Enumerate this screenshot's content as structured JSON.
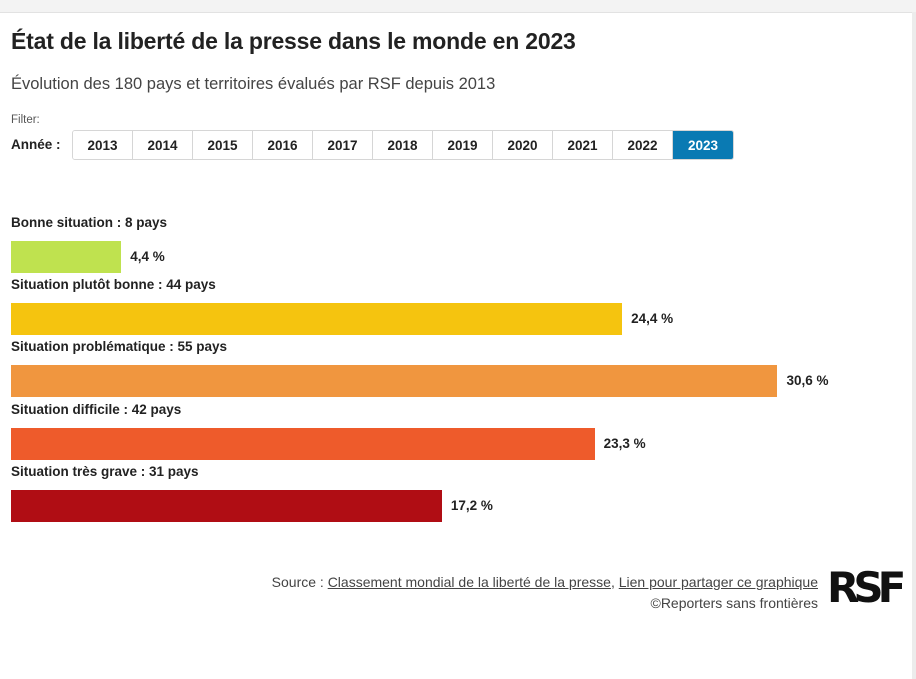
{
  "header": {
    "title": "État de la liberté de la presse dans le monde en 2023",
    "subtitle": "Évolution des 180 pays et territoires évalués par RSF depuis 2013"
  },
  "filter": {
    "label": "Filter:",
    "year_label": "Année :",
    "years": [
      "2013",
      "2014",
      "2015",
      "2016",
      "2017",
      "2018",
      "2019",
      "2020",
      "2021",
      "2022",
      "2023"
    ],
    "selected": "2023",
    "active_color": "#0a7ab3"
  },
  "chart_data": {
    "type": "bar",
    "orientation": "horizontal",
    "title": "État de la liberté de la presse dans le monde en 2023",
    "categories": [
      "Bonne situation : 8 pays",
      "Situation plutôt bonne : 44 pays",
      "Situation problématique : 55 pays",
      "Situation difficile : 42 pays",
      "Situation très grave : 31 pays"
    ],
    "values": [
      4.4,
      24.4,
      30.6,
      23.3,
      17.2
    ],
    "value_labels": [
      "4,4 %",
      "24,4 %",
      "30,6 %",
      "23,3 %",
      "17,2 %"
    ],
    "colors": [
      "#bfe24f",
      "#f5c40f",
      "#f0963f",
      "#ee5b2b",
      "#b00d14"
    ],
    "xlim": [
      0,
      31.5
    ],
    "unit": "%"
  },
  "footer": {
    "source_prefix": "Source : ",
    "source_link": "Classement mondial de la liberté de la presse",
    "separator": ", ",
    "share_link": "Lien pour partager ce graphique",
    "copyright": "©Reporters sans frontières",
    "logo_text": "RSF"
  }
}
